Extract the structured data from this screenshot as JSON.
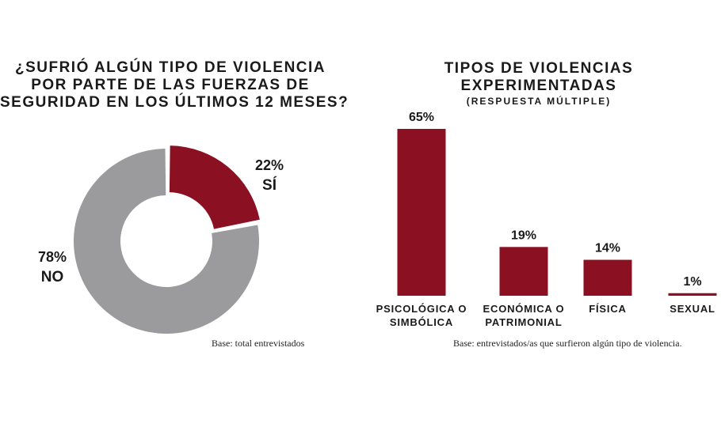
{
  "colors": {
    "primary": "#8b1022",
    "secondary": "#9b9b9d"
  },
  "chart_data": [
    {
      "type": "pie",
      "title": "¿SUFRIÓ ALGÚN TIPO DE VIOLENCIA POR PARTE DE LAS FUERZAS DE SEGURIDAD EN LOS ÚLTIMOS 12 MESES?",
      "title_lines": [
        "¿SUFRIÓ ALGÚN TIPO DE VIOLENCIA",
        "POR PARTE DE LAS FUERZAS DE",
        "SEGURIDAD EN LOS ÚLTIMOS 12 MESES?"
      ],
      "donut": true,
      "slices": [
        {
          "label": "SÍ",
          "value": 22,
          "value_label": "22%",
          "color": "#8b1022"
        },
        {
          "label": "NO",
          "value": 78,
          "value_label": "78%",
          "color": "#9b9b9d"
        }
      ],
      "note": "Base: total entrevistados"
    },
    {
      "type": "bar",
      "title": "TIPOS DE VIOLENCIAS EXPERIMENTADAS",
      "title_lines": [
        "TIPOS DE VIOLENCIAS",
        "EXPERIMENTADAS"
      ],
      "subtitle": "(RESPUESTA MÚLTIPLE)",
      "categories": [
        [
          "PSICOLÓGICA O",
          "SIMBÓLICA"
        ],
        [
          "ECONÓMICA O",
          "PATRIMONIAL"
        ],
        [
          "FÍSICA"
        ],
        [
          "SEXUAL"
        ]
      ],
      "values": [
        65,
        19,
        14,
        1
      ],
      "value_labels": [
        "65%",
        "19%",
        "14%",
        "1%"
      ],
      "color": "#8b1022",
      "ylim": [
        0,
        65
      ],
      "note": "Base: entrevistados/as que surfieron algún tipo de violencia."
    }
  ]
}
